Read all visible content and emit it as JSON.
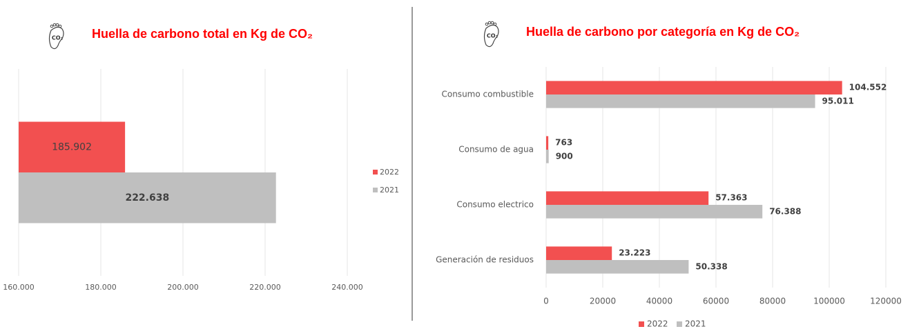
{
  "charts": [
    {
      "chart_data": {
        "type": "hbar",
        "title": "Huella de carbono total en Kg de CO₂",
        "icon_text": "CO₂",
        "categories": [
          null
        ],
        "series": [
          {
            "name": "2022",
            "color": "#f25050",
            "values": [
              185902
            ],
            "value_labels": [
              "185.902"
            ]
          },
          {
            "name": "2021",
            "color": "#bfbfbf",
            "values": [
              222638
            ],
            "value_labels": [
              "222.638"
            ]
          }
        ],
        "xlim": [
          160000,
          240000
        ],
        "xticks": [
          {
            "value": 160000,
            "label": "160.000"
          },
          {
            "value": 180000,
            "label": "180.000"
          },
          {
            "value": 200000,
            "label": "200.000"
          },
          {
            "value": 220000,
            "label": "220.000"
          },
          {
            "value": 240000,
            "label": "240.000"
          }
        ],
        "grid": true,
        "legend": "right"
      }
    },
    {
      "chart_data": {
        "type": "hbar",
        "title": "Huella de carbono por categoría en Kg de CO₂",
        "icon_text": "CO₂",
        "categories": [
          "Consumo combustible",
          "Consumo de agua",
          "Consumo electrico",
          "Generación de residuos"
        ],
        "series": [
          {
            "name": "2022",
            "color": "#f25050",
            "values": [
              104552,
              763,
              57363,
              23223
            ],
            "value_labels": [
              "104.552",
              "763",
              "57.363",
              "23.223"
            ]
          },
          {
            "name": "2021",
            "color": "#bfbfbf",
            "values": [
              95011,
              900,
              76388,
              50338
            ],
            "value_labels": [
              "95.011",
              "900",
              "76.388",
              "50.338"
            ]
          }
        ],
        "xlim": [
          0,
          120000
        ],
        "xticks": [
          0,
          20000,
          40000,
          60000,
          80000,
          100000,
          120000
        ],
        "grid": true,
        "legend": "bottom"
      }
    }
  ]
}
